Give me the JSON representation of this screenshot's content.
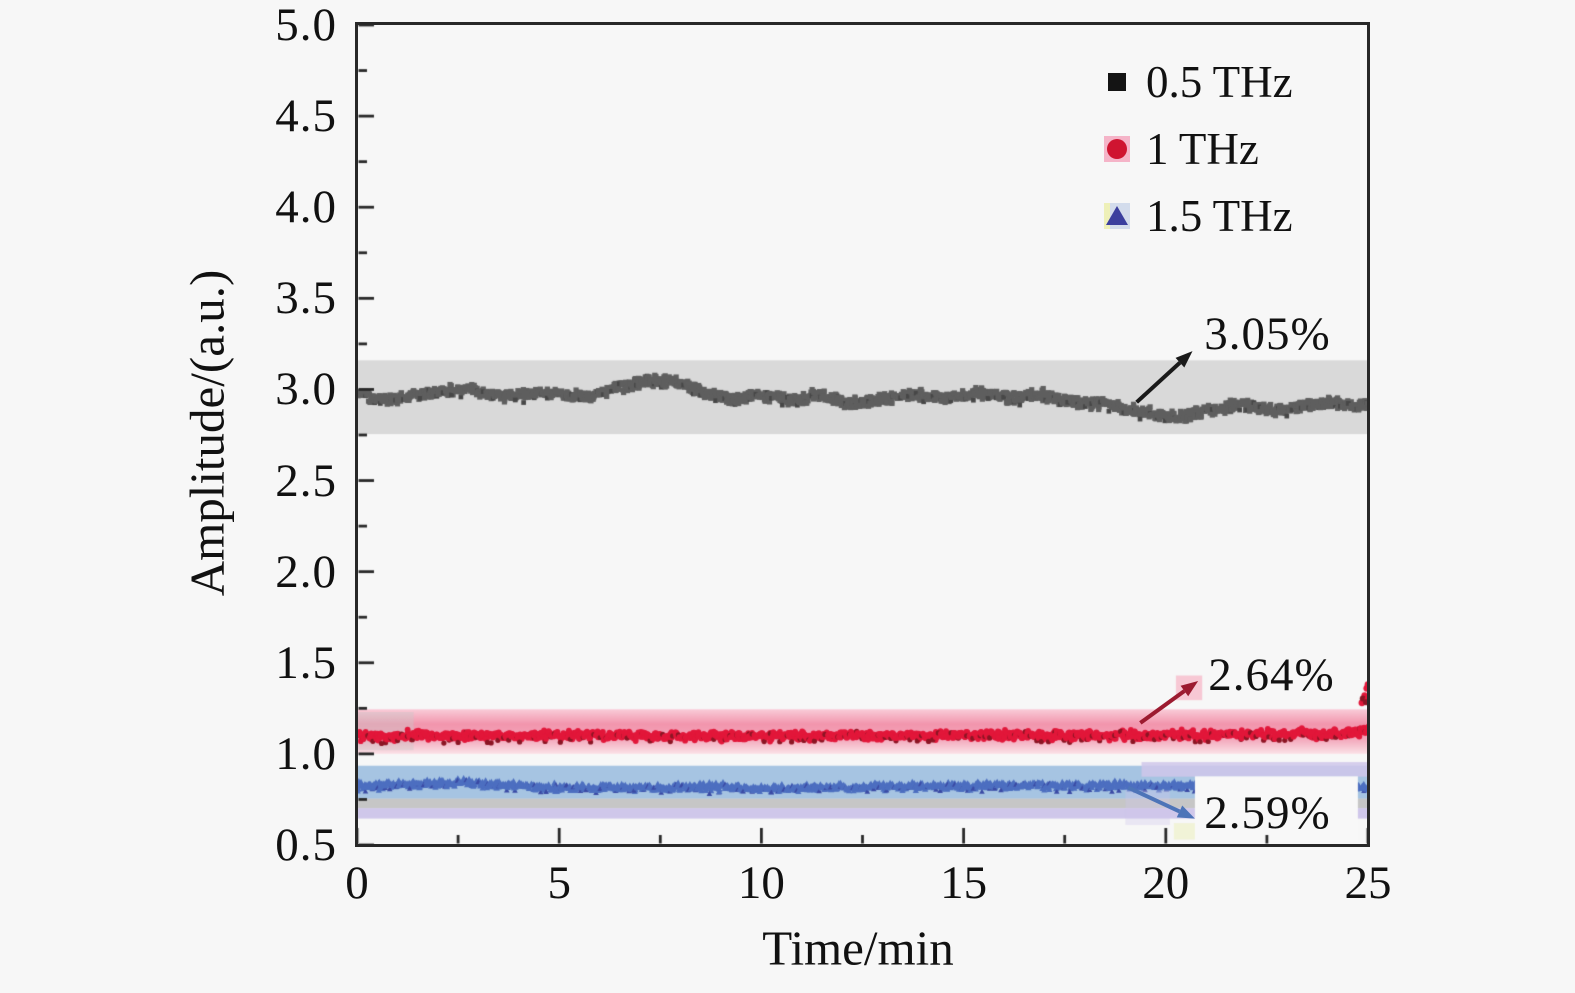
{
  "figure": {
    "background": "#f7f7f7",
    "axis_color": "#282828",
    "label_box_color": "#f8f8f8"
  },
  "chart_data": {
    "type": "scatter",
    "title": "",
    "xlabel": "Time/min",
    "ylabel": "Amplitude/(a.u.)",
    "xlim": [
      0,
      25
    ],
    "ylim": [
      0.5,
      5.0
    ],
    "x_tick_labels": [
      "0",
      "5",
      "10",
      "15",
      "20",
      "25"
    ],
    "x_tick_values": [
      0,
      5,
      10,
      15,
      20,
      25
    ],
    "x_minor_step": 2.5,
    "y_tick_labels": [
      "0.5",
      "1.0",
      "1.5",
      "2.0",
      "2.5",
      "3.0",
      "3.5",
      "4.0",
      "4.5",
      "5.0"
    ],
    "y_tick_values": [
      0.5,
      1.0,
      1.5,
      2.0,
      2.5,
      3.0,
      3.5,
      4.0,
      4.5,
      5.0
    ],
    "y_minor_step": 0.25,
    "grid": false,
    "legend_position": "upper right",
    "seed": 20240517,
    "series": [
      {
        "name": "0.5 THz",
        "marker": "square",
        "color": "#5f5f5f",
        "dark_color": "#474747",
        "mean": 2.95,
        "fluctuation": "3.05%",
        "noise": 0.021,
        "band": {
          "lo": 2.755,
          "hi": 3.16,
          "colors": [
            "#d9d9d9"
          ]
        },
        "keypoints": [
          [
            0,
            2.97
          ],
          [
            0.7,
            2.94
          ],
          [
            1.5,
            2.97
          ],
          [
            2.2,
            2.99
          ],
          [
            2.8,
            3.01
          ],
          [
            3.4,
            2.96
          ],
          [
            4.2,
            2.98
          ],
          [
            5,
            2.97
          ],
          [
            5.8,
            2.96
          ],
          [
            6.5,
            3.02
          ],
          [
            7.2,
            3.05
          ],
          [
            7.9,
            3.04
          ],
          [
            8.5,
            2.99
          ],
          [
            9.2,
            2.95
          ],
          [
            10,
            2.97
          ],
          [
            10.8,
            2.94
          ],
          [
            11.5,
            2.97
          ],
          [
            12.2,
            2.92
          ],
          [
            13,
            2.95
          ],
          [
            13.8,
            2.97
          ],
          [
            14.6,
            2.95
          ],
          [
            15.4,
            2.98
          ],
          [
            16.1,
            2.95
          ],
          [
            16.9,
            2.97
          ],
          [
            17.6,
            2.94
          ],
          [
            18.4,
            2.92
          ],
          [
            19.1,
            2.89
          ],
          [
            19.8,
            2.86
          ],
          [
            20.4,
            2.85
          ],
          [
            21.1,
            2.89
          ],
          [
            21.9,
            2.92
          ],
          [
            22.6,
            2.88
          ],
          [
            23.4,
            2.91
          ],
          [
            24.1,
            2.93
          ],
          [
            24.6,
            2.9
          ],
          [
            25,
            2.92
          ]
        ]
      },
      {
        "name": "1 THz",
        "marker": "circle",
        "color": "#e2173a",
        "dark_color": "#8c1524",
        "mean": 1.1,
        "fluctuation": "2.64%",
        "noise": 0.016,
        "band": {
          "lo": 1.0,
          "hi": 1.245,
          "colors": [
            "#f9ccd8",
            "#f295ad",
            "#f3a7bb",
            "#fbe2e7"
          ]
        },
        "keypoints": [
          [
            0,
            1.095
          ],
          [
            2,
            1.1
          ],
          [
            4,
            1.098
          ],
          [
            6,
            1.103
          ],
          [
            8,
            1.1
          ],
          [
            10,
            1.097
          ],
          [
            12,
            1.102
          ],
          [
            14,
            1.1
          ],
          [
            16,
            1.105
          ],
          [
            18,
            1.1
          ],
          [
            20,
            1.103
          ],
          [
            22,
            1.106
          ],
          [
            23.5,
            1.11
          ],
          [
            24.5,
            1.115
          ],
          [
            25,
            1.125
          ]
        ],
        "outliers": [
          [
            24.85,
            1.28
          ],
          [
            24.92,
            1.32
          ],
          [
            24.97,
            1.36
          ],
          [
            25,
            1.3
          ],
          [
            25,
            1.38
          ]
        ]
      },
      {
        "name": "1.5 THz",
        "marker": "triangle",
        "color": "#4d6fc0",
        "dark_color": "#3a4aa4",
        "mean": 0.82,
        "fluctuation": "2.59%",
        "noise": 0.013,
        "band": {
          "lo": 0.755,
          "hi": 0.935,
          "colors": [
            "#a6c4e2"
          ]
        },
        "underlays": [
          {
            "lo": 0.7,
            "hi": 0.757,
            "color": "#c6c6c6",
            "alpha": 1
          },
          {
            "lo": 0.645,
            "hi": 0.702,
            "color": "#cfc7ea",
            "alpha": 1
          }
        ],
        "keypoints": [
          [
            0,
            0.825
          ],
          [
            1.2,
            0.835
          ],
          [
            2.6,
            0.845
          ],
          [
            3.6,
            0.83
          ],
          [
            5,
            0.815
          ],
          [
            6.2,
            0.82
          ],
          [
            7.4,
            0.815
          ],
          [
            8.8,
            0.822
          ],
          [
            10,
            0.812
          ],
          [
            11.4,
            0.818
          ],
          [
            12.8,
            0.822
          ],
          [
            14.2,
            0.825
          ],
          [
            15.6,
            0.83
          ],
          [
            17,
            0.827
          ],
          [
            18.4,
            0.83
          ],
          [
            19.6,
            0.828
          ],
          [
            21,
            0.825
          ],
          [
            22.4,
            0.83
          ],
          [
            23.6,
            0.822
          ],
          [
            25,
            0.818
          ]
        ]
      }
    ],
    "patches_under": [
      {
        "x0": 0,
        "x1": 1.4,
        "y0": 1.02,
        "y1": 1.23,
        "color": "#c9c9c9",
        "alpha": 0.4
      }
    ],
    "patches_over": [
      {
        "x0": 19.4,
        "x1": 25,
        "y0": 0.875,
        "y1": 0.955,
        "color": "#cfc7ea",
        "alpha": 0.85
      },
      {
        "x0": 20.25,
        "x1": 20.9,
        "y0": 1.295,
        "y1": 1.43,
        "color": "#f6a8bd",
        "alpha": 0.6
      },
      {
        "x0": 19.0,
        "x1": 20.1,
        "y0": 0.61,
        "y1": 0.8,
        "color": "#cfc7ea",
        "alpha": 0.35
      },
      {
        "x0": 20.2,
        "x1": 20.9,
        "y0": 0.53,
        "y1": 0.62,
        "color": "#edf0c2",
        "alpha": 0.6
      }
    ],
    "annotations": [
      {
        "label": "3.05%",
        "text_x": 20.95,
        "text_y": 3.3,
        "color": "#1a1a1a",
        "arrow": {
          "x1": 19.28,
          "y1": 2.93,
          "x2": 20.66,
          "y2": 3.21
        }
      },
      {
        "label": "2.64%",
        "text_x": 21.05,
        "text_y": 1.43,
        "color": "#9c1b30",
        "arrow": {
          "x1": 19.37,
          "y1": 1.17,
          "x2": 20.8,
          "y2": 1.4
        }
      },
      {
        "label": "2.59%",
        "text_x": 20.95,
        "text_y": 0.67,
        "color": "#4d74b8",
        "boxed": true,
        "box": {
          "x0": 20.72,
          "x1": 24.75,
          "y_top": 0.877,
          "y_bot": 0.52
        },
        "arrow": {
          "x1": 19.07,
          "y1": 0.815,
          "x2": 20.72,
          "y2": 0.645
        }
      }
    ]
  }
}
